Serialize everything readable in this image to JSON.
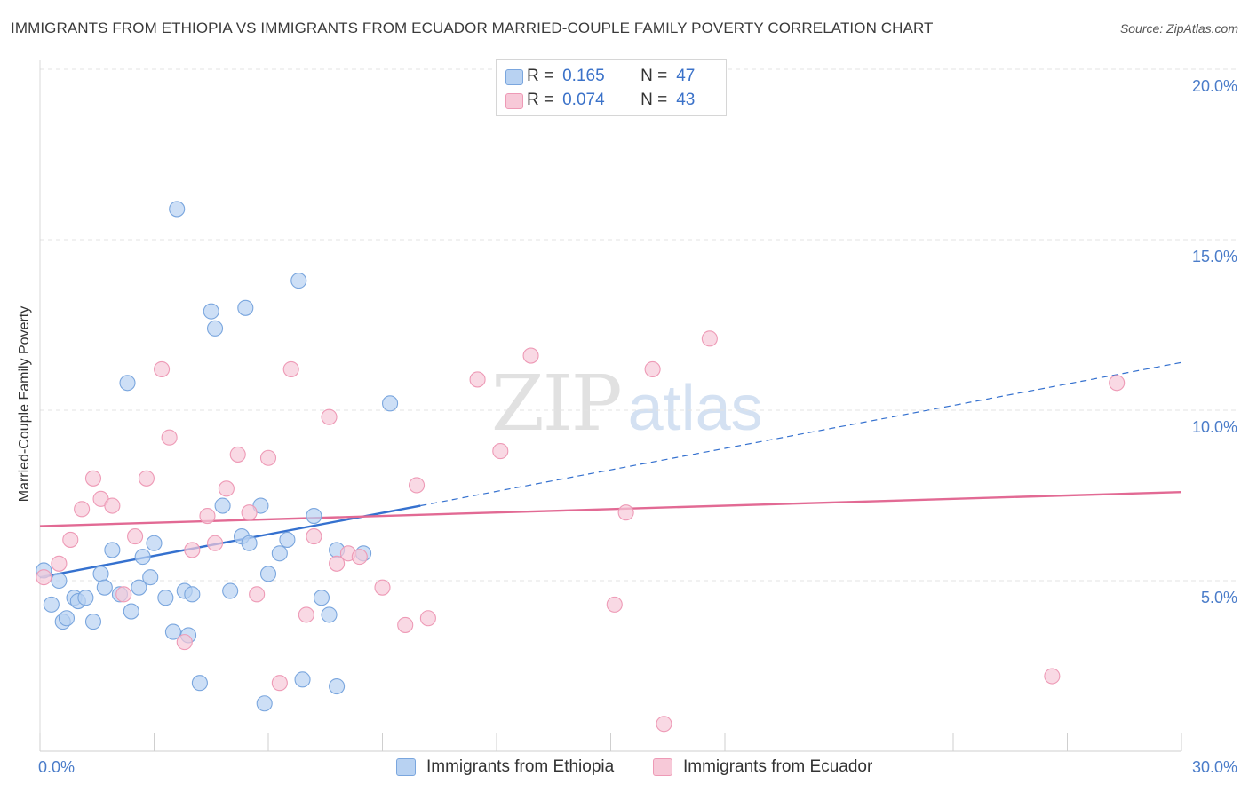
{
  "title": "IMMIGRANTS FROM ETHIOPIA VS IMMIGRANTS FROM ECUADOR MARRIED-COUPLE FAMILY POVERTY CORRELATION CHART",
  "source": "Source: ZipAtlas.com",
  "watermark": {
    "zip": "ZIP",
    "atlas": "atlas"
  },
  "colors": {
    "ethiopia_fill": "#b8d2f2",
    "ethiopia_stroke": "#7aa6de",
    "ethiopia_line": "#3571cf",
    "ecuador_fill": "#f7c9d8",
    "ecuador_stroke": "#ee9ab6",
    "ecuador_line": "#e26a94",
    "grid": "#e3e3e3",
    "axis_text": "#4a7cc9"
  },
  "legend": {
    "rows": [
      {
        "r_label": "R =",
        "r_value": "0.165",
        "n_label": "N =",
        "n_value": "47"
      },
      {
        "r_label": "R =",
        "r_value": "0.074",
        "n_label": "N =",
        "n_value": "43"
      }
    ]
  },
  "chart_data": {
    "type": "scatter",
    "title": "IMMIGRANTS FROM ETHIOPIA VS IMMIGRANTS FROM ECUADOR MARRIED-COUPLE FAMILY POVERTY CORRELATION CHART",
    "xlabel": "",
    "ylabel": "Married-Couple Family Poverty",
    "xlim": [
      0,
      30
    ],
    "ylim": [
      0,
      20
    ],
    "x_tick_labels": [
      "0.0%",
      "30.0%"
    ],
    "y_ticks": [
      5,
      10,
      15,
      20
    ],
    "y_tick_labels": [
      "5.0%",
      "10.0%",
      "15.0%",
      "20.0%"
    ],
    "grid": true,
    "legend_position": "top-center",
    "series": [
      {
        "name": "Immigrants from Ethiopia",
        "points": [
          [
            0.1,
            5.3
          ],
          [
            0.3,
            4.3
          ],
          [
            0.5,
            5.0
          ],
          [
            0.6,
            3.8
          ],
          [
            0.7,
            3.9
          ],
          [
            0.9,
            4.5
          ],
          [
            1.0,
            4.4
          ],
          [
            1.2,
            4.5
          ],
          [
            1.4,
            3.8
          ],
          [
            1.6,
            5.2
          ],
          [
            1.7,
            4.8
          ],
          [
            1.9,
            5.9
          ],
          [
            2.1,
            4.6
          ],
          [
            2.3,
            10.8
          ],
          [
            2.4,
            4.1
          ],
          [
            2.6,
            4.8
          ],
          [
            2.7,
            5.7
          ],
          [
            2.9,
            5.1
          ],
          [
            3.0,
            6.1
          ],
          [
            3.3,
            4.5
          ],
          [
            3.5,
            3.5
          ],
          [
            3.6,
            15.9
          ],
          [
            3.8,
            4.7
          ],
          [
            3.9,
            3.4
          ],
          [
            4.0,
            4.6
          ],
          [
            4.2,
            2.0
          ],
          [
            4.5,
            12.9
          ],
          [
            4.6,
            12.4
          ],
          [
            4.8,
            7.2
          ],
          [
            5.0,
            4.7
          ],
          [
            5.3,
            6.3
          ],
          [
            5.4,
            13.0
          ],
          [
            5.5,
            6.1
          ],
          [
            5.8,
            7.2
          ],
          [
            5.9,
            1.4
          ],
          [
            6.0,
            5.2
          ],
          [
            6.3,
            5.8
          ],
          [
            6.5,
            6.2
          ],
          [
            6.8,
            13.8
          ],
          [
            6.9,
            2.1
          ],
          [
            7.2,
            6.9
          ],
          [
            7.4,
            4.5
          ],
          [
            7.6,
            4.0
          ],
          [
            7.8,
            5.9
          ],
          [
            7.8,
            1.9
          ],
          [
            8.5,
            5.8
          ],
          [
            9.2,
            10.2
          ]
        ],
        "trend": {
          "x": [
            0,
            10
          ],
          "y": [
            5.1,
            7.2
          ],
          "dashed_extension": {
            "x": [
              10,
              30
            ],
            "y": [
              7.2,
              11.4
            ]
          }
        }
      },
      {
        "name": "Immigrants from Ecuador",
        "points": [
          [
            0.1,
            5.1
          ],
          [
            0.5,
            5.5
          ],
          [
            0.8,
            6.2
          ],
          [
            1.1,
            7.1
          ],
          [
            1.4,
            8.0
          ],
          [
            1.6,
            7.4
          ],
          [
            1.9,
            7.2
          ],
          [
            2.2,
            4.6
          ],
          [
            2.5,
            6.3
          ],
          [
            2.8,
            8.0
          ],
          [
            3.2,
            11.2
          ],
          [
            3.4,
            9.2
          ],
          [
            3.8,
            3.2
          ],
          [
            4.0,
            5.9
          ],
          [
            4.4,
            6.9
          ],
          [
            4.6,
            6.1
          ],
          [
            4.9,
            7.7
          ],
          [
            5.2,
            8.7
          ],
          [
            5.5,
            7.0
          ],
          [
            5.7,
            4.6
          ],
          [
            6.0,
            8.6
          ],
          [
            6.3,
            2.0
          ],
          [
            6.6,
            11.2
          ],
          [
            7.0,
            4.0
          ],
          [
            7.2,
            6.3
          ],
          [
            7.6,
            9.8
          ],
          [
            7.8,
            5.5
          ],
          [
            8.1,
            5.8
          ],
          [
            8.4,
            5.7
          ],
          [
            9.0,
            4.8
          ],
          [
            9.6,
            3.7
          ],
          [
            9.9,
            7.8
          ],
          [
            10.2,
            3.9
          ],
          [
            11.5,
            10.9
          ],
          [
            12.1,
            8.8
          ],
          [
            12.9,
            11.6
          ],
          [
            15.1,
            4.3
          ],
          [
            15.4,
            7.0
          ],
          [
            16.1,
            11.2
          ],
          [
            16.4,
            0.8
          ],
          [
            17.6,
            12.1
          ],
          [
            26.6,
            2.2
          ],
          [
            28.3,
            10.8
          ]
        ],
        "trend": {
          "x": [
            0,
            30
          ],
          "y": [
            6.6,
            7.6
          ]
        }
      }
    ]
  }
}
